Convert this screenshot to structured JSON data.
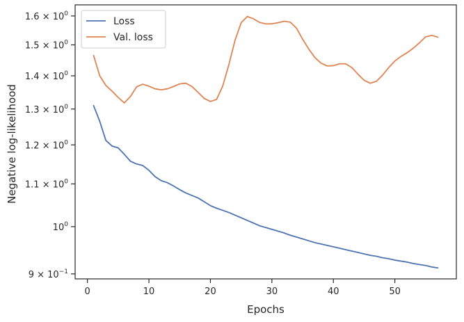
{
  "chart_data": {
    "type": "line",
    "xlabel": "Epochs",
    "ylabel": "Negative log-likelihood",
    "yscale": "log",
    "xlim": [
      -2,
      60
    ],
    "ylim": [
      0.89,
      1.64
    ],
    "grid": false,
    "legend_position": "top-left",
    "x_ticks": [
      0,
      10,
      20,
      30,
      40,
      50
    ],
    "x_tick_labels": [
      "0",
      "10",
      "20",
      "30",
      "40",
      "50"
    ],
    "y_ticks": [
      {
        "value": 0.9,
        "base": "9 × 10",
        "exp": "−1"
      },
      {
        "value": 1.0,
        "base": "10",
        "exp": "0"
      },
      {
        "value": 1.1,
        "base": "1.1 × 10",
        "exp": "0"
      },
      {
        "value": 1.2,
        "base": "1.2 × 10",
        "exp": "0"
      },
      {
        "value": 1.3,
        "base": "1.3 × 10",
        "exp": "0"
      },
      {
        "value": 1.4,
        "base": "1.4 × 10",
        "exp": "0"
      },
      {
        "value": 1.5,
        "base": "1.5 × 10",
        "exp": "0"
      },
      {
        "value": 1.6,
        "base": "1.6 × 10",
        "exp": "0"
      }
    ],
    "series": [
      {
        "name": "Loss",
        "color": "#4c72b0",
        "x": [
          1,
          2,
          3,
          4,
          5,
          6,
          7,
          8,
          9,
          10,
          11,
          12,
          13,
          14,
          15,
          16,
          17,
          18,
          19,
          20,
          21,
          22,
          23,
          24,
          25,
          26,
          27,
          28,
          29,
          30,
          31,
          32,
          33,
          34,
          35,
          36,
          37,
          38,
          39,
          40,
          41,
          42,
          43,
          44,
          45,
          46,
          47,
          48,
          49,
          50,
          51,
          52,
          53,
          54,
          55,
          56,
          57
        ],
        "y": [
          1.31,
          1.265,
          1.212,
          1.197,
          1.192,
          1.175,
          1.157,
          1.15,
          1.146,
          1.134,
          1.118,
          1.108,
          1.103,
          1.095,
          1.086,
          1.078,
          1.072,
          1.066,
          1.057,
          1.048,
          1.042,
          1.037,
          1.032,
          1.026,
          1.02,
          1.014,
          1.008,
          1.002,
          0.998,
          0.994,
          0.99,
          0.986,
          0.981,
          0.977,
          0.973,
          0.969,
          0.965,
          0.962,
          0.959,
          0.956,
          0.953,
          0.95,
          0.947,
          0.944,
          0.941,
          0.938,
          0.936,
          0.933,
          0.931,
          0.928,
          0.926,
          0.924,
          0.921,
          0.919,
          0.917,
          0.914,
          0.912
        ]
      },
      {
        "name": "Val. loss",
        "color": "#dd8452",
        "x": [
          1,
          2,
          3,
          4,
          5,
          6,
          7,
          8,
          9,
          10,
          11,
          12,
          13,
          14,
          15,
          16,
          17,
          18,
          19,
          20,
          21,
          22,
          23,
          24,
          25,
          26,
          27,
          28,
          29,
          30,
          31,
          32,
          33,
          34,
          35,
          36,
          37,
          38,
          39,
          40,
          41,
          42,
          43,
          44,
          45,
          46,
          47,
          48,
          49,
          50,
          51,
          52,
          53,
          54,
          55,
          56,
          57
        ],
        "y": [
          1.465,
          1.4,
          1.37,
          1.353,
          1.334,
          1.318,
          1.337,
          1.366,
          1.374,
          1.368,
          1.36,
          1.357,
          1.36,
          1.367,
          1.375,
          1.377,
          1.367,
          1.349,
          1.331,
          1.322,
          1.328,
          1.368,
          1.435,
          1.515,
          1.576,
          1.598,
          1.59,
          1.577,
          1.572,
          1.572,
          1.576,
          1.581,
          1.578,
          1.557,
          1.519,
          1.486,
          1.458,
          1.44,
          1.431,
          1.432,
          1.438,
          1.438,
          1.426,
          1.405,
          1.386,
          1.377,
          1.383,
          1.402,
          1.426,
          1.447,
          1.462,
          1.474,
          1.489,
          1.507,
          1.527,
          1.532,
          1.526
        ]
      }
    ]
  }
}
